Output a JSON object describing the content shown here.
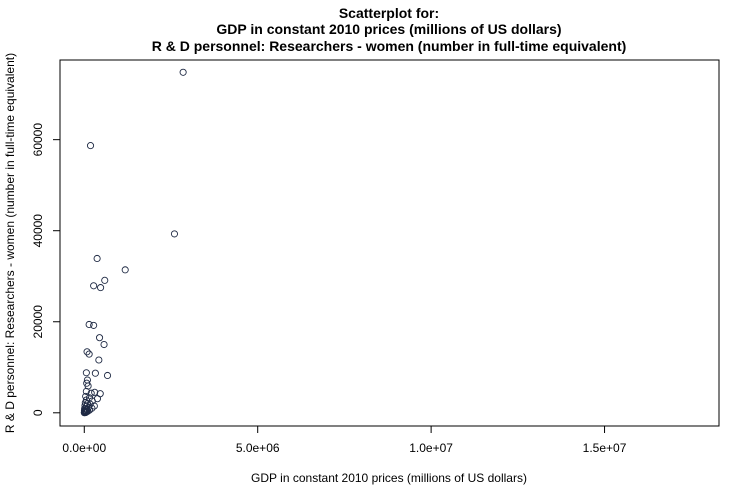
{
  "chart_data": {
    "type": "scatter",
    "title_lines": [
      "Scatterplot for:",
      "GDP in constant 2010 prices (millions of US dollars)",
      "R & D personnel: Researchers - women (number in full-time equivalent)"
    ],
    "xlabel": "GDP in constant 2010 prices (millions of US dollars)",
    "ylabel": "R & D personnel: Researchers - women (number in full-time equivalent)",
    "xlim": [
      -700000,
      18300000
    ],
    "ylim": [
      -2900,
      77500
    ],
    "x_ticks": [
      {
        "value": 0,
        "label": "0.0e+00"
      },
      {
        "value": 5000000,
        "label": "5.0e+06"
      },
      {
        "value": 10000000,
        "label": "1.0e+07"
      },
      {
        "value": 15000000,
        "label": "1.5e+07"
      }
    ],
    "y_ticks": [
      {
        "value": 0,
        "label": "0"
      },
      {
        "value": 20000,
        "label": "20000"
      },
      {
        "value": 40000,
        "label": "40000"
      },
      {
        "value": 60000,
        "label": "60000"
      }
    ],
    "marker_color": "#1f2a44",
    "points": [
      [
        2850000,
        74800
      ],
      [
        180000,
        58700
      ],
      [
        2600000,
        39300
      ],
      [
        370000,
        33900
      ],
      [
        1180000,
        31400
      ],
      [
        590000,
        29100
      ],
      [
        270000,
        27900
      ],
      [
        470000,
        27500
      ],
      [
        140000,
        19400
      ],
      [
        270000,
        19200
      ],
      [
        440000,
        16500
      ],
      [
        570000,
        15000
      ],
      [
        80000,
        13400
      ],
      [
        140000,
        12900
      ],
      [
        420000,
        11600
      ],
      [
        60000,
        8800
      ],
      [
        320000,
        8700
      ],
      [
        670000,
        8200
      ],
      [
        90000,
        7200
      ],
      [
        70000,
        6500
      ],
      [
        110000,
        5900
      ],
      [
        60000,
        4700
      ],
      [
        200000,
        4300
      ],
      [
        300000,
        4500
      ],
      [
        460000,
        4200
      ],
      [
        40000,
        3600
      ],
      [
        150000,
        3300
      ],
      [
        380000,
        3100
      ],
      [
        60000,
        2800
      ],
      [
        230000,
        2600
      ],
      [
        30000,
        2200
      ],
      [
        90000,
        2000
      ],
      [
        170000,
        1900
      ],
      [
        290000,
        1500
      ],
      [
        20000,
        1600
      ],
      [
        60000,
        1400
      ],
      [
        120000,
        1200
      ],
      [
        220000,
        1000
      ],
      [
        10000,
        900
      ],
      [
        40000,
        800
      ],
      [
        80000,
        700
      ],
      [
        150000,
        600
      ],
      [
        5000,
        500
      ],
      [
        25000,
        450
      ],
      [
        55000,
        400
      ],
      [
        100000,
        350
      ],
      [
        10000,
        300
      ],
      [
        30000,
        250
      ],
      [
        70000,
        200
      ],
      [
        15000,
        150
      ],
      [
        45000,
        120
      ],
      [
        3000,
        100
      ],
      [
        20000,
        80
      ],
      [
        8000,
        50
      ],
      [
        35000,
        40
      ],
      [
        2000,
        20
      ]
    ]
  }
}
